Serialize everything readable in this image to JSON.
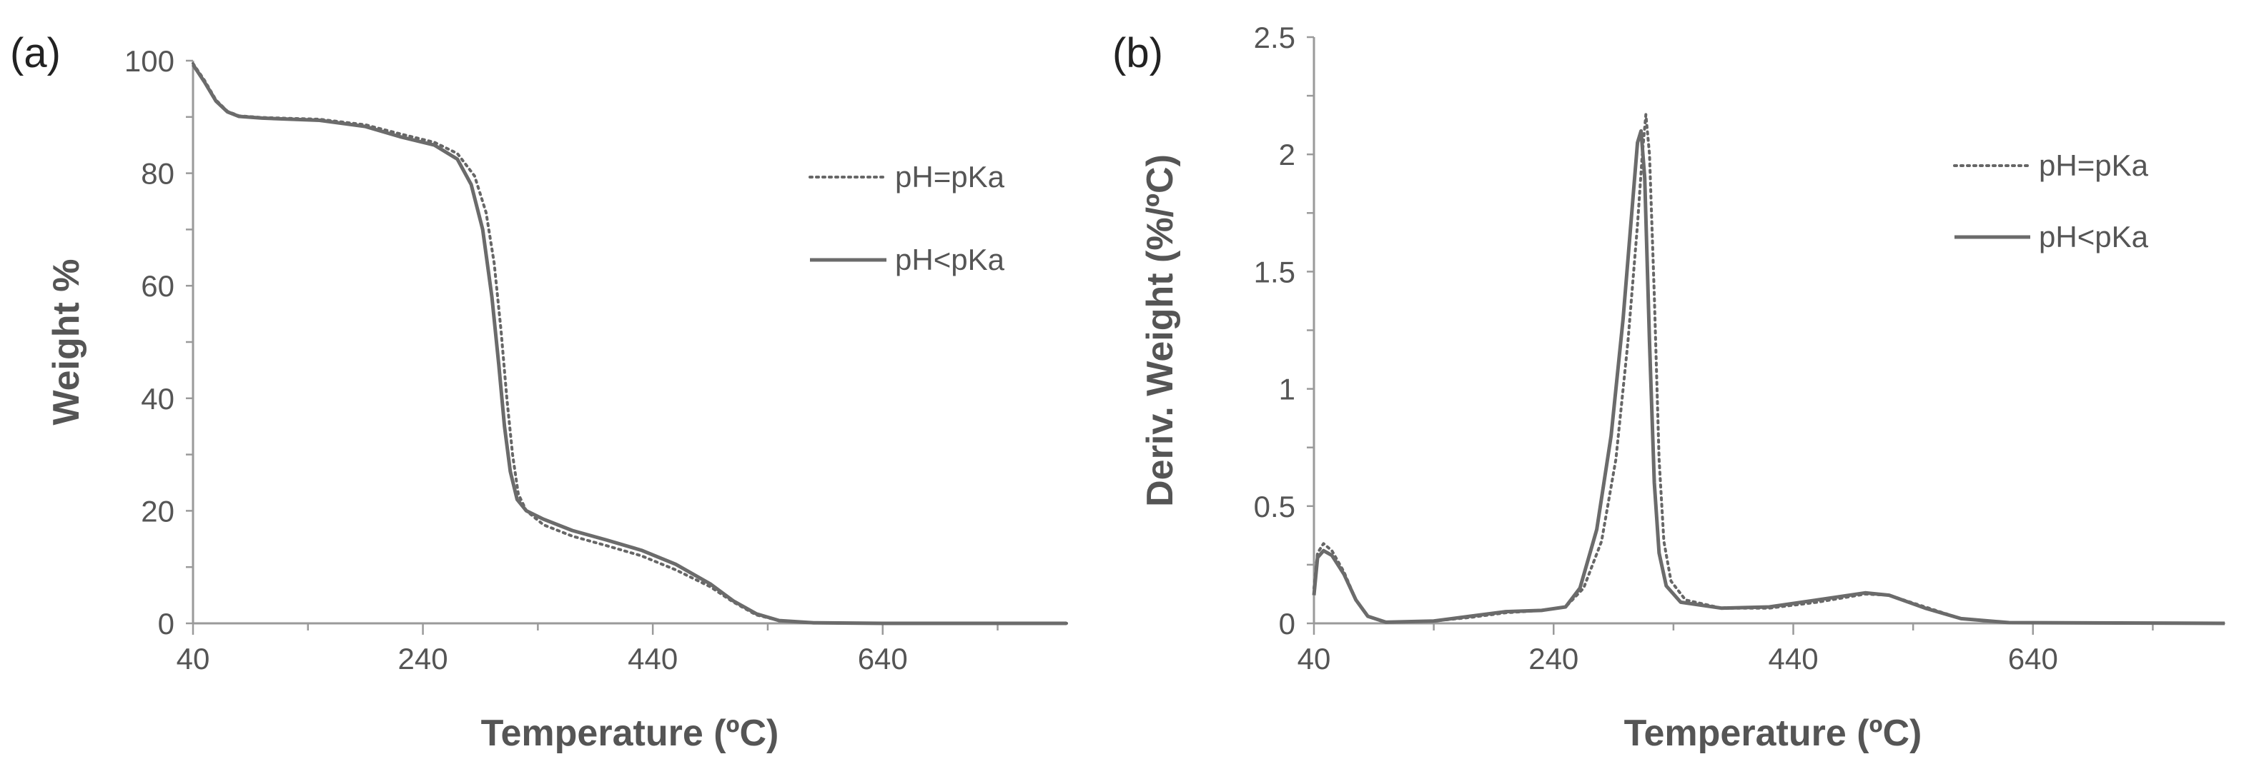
{
  "chart_data": [
    {
      "type": "line",
      "panel_label": "(a)",
      "xlabel": "Temperature (ºC)",
      "ylabel": "Weight %",
      "xlim": [
        40,
        800
      ],
      "ylim": [
        0,
        100
      ],
      "xticks": [
        40,
        240,
        440,
        640
      ],
      "yticks": [
        0,
        20,
        40,
        60,
        80,
        100
      ],
      "legend_position": "top-right",
      "series": [
        {
          "name": "pH=pKa",
          "style": "dotted",
          "color": "#666666",
          "points": [
            [
              40,
              99.5
            ],
            [
              50,
              96.5
            ],
            [
              60,
              93
            ],
            [
              70,
              91
            ],
            [
              80,
              90.2
            ],
            [
              100,
              89.9
            ],
            [
              150,
              89.6
            ],
            [
              190,
              88.6
            ],
            [
              220,
              87
            ],
            [
              250,
              85.5
            ],
            [
              270,
              83.5
            ],
            [
              285,
              79.5
            ],
            [
              295,
              73
            ],
            [
              302,
              64
            ],
            [
              308,
              52
            ],
            [
              313,
              40
            ],
            [
              318,
              30
            ],
            [
              323,
              23
            ],
            [
              330,
              20
            ],
            [
              345,
              17.5
            ],
            [
              370,
              15.5
            ],
            [
              400,
              13.8
            ],
            [
              430,
              12
            ],
            [
              460,
              9.5
            ],
            [
              490,
              6.5
            ],
            [
              510,
              3.8
            ],
            [
              530,
              1.5
            ],
            [
              550,
              0.5
            ],
            [
              580,
              0.1
            ],
            [
              640,
              0
            ],
            [
              800,
              0
            ]
          ]
        },
        {
          "name": "pH<pKa",
          "style": "solid",
          "color": "#6b6b6b",
          "points": [
            [
              40,
              99.3
            ],
            [
              50,
              96.2
            ],
            [
              60,
              92.8
            ],
            [
              70,
              90.9
            ],
            [
              80,
              90.1
            ],
            [
              100,
              89.8
            ],
            [
              150,
              89.4
            ],
            [
              190,
              88.3
            ],
            [
              220,
              86.5
            ],
            [
              250,
              85
            ],
            [
              270,
              82.5
            ],
            [
              282,
              78
            ],
            [
              292,
              70
            ],
            [
              300,
              58
            ],
            [
              306,
              46
            ],
            [
              311,
              35
            ],
            [
              316,
              27
            ],
            [
              322,
              22
            ],
            [
              330,
              20
            ],
            [
              345,
              18.5
            ],
            [
              370,
              16.5
            ],
            [
              400,
              14.8
            ],
            [
              430,
              13
            ],
            [
              460,
              10.5
            ],
            [
              490,
              7
            ],
            [
              510,
              4
            ],
            [
              530,
              1.7
            ],
            [
              550,
              0.5
            ],
            [
              580,
              0.1
            ],
            [
              640,
              0
            ],
            [
              800,
              0
            ]
          ]
        }
      ]
    },
    {
      "type": "line",
      "panel_label": "(b)",
      "xlabel": "Temperature (ºC)",
      "ylabel": "Deriv. Weight (%/ºC)",
      "xlim": [
        40,
        800
      ],
      "ylim": [
        0,
        2.5
      ],
      "xticks": [
        40,
        240,
        440,
        640
      ],
      "yticks": [
        0,
        0.5,
        1,
        1.5,
        2,
        2.5
      ],
      "ytick_labels": [
        "0",
        "0.5",
        "1",
        "1.5",
        "2",
        "2.5"
      ],
      "legend_position": "top-right",
      "series": [
        {
          "name": "pH=pKa",
          "style": "dotted",
          "color": "#666666",
          "points": [
            [
              40,
              0.15
            ],
            [
              43,
              0.3
            ],
            [
              48,
              0.34
            ],
            [
              55,
              0.31
            ],
            [
              65,
              0.22
            ],
            [
              75,
              0.1
            ],
            [
              85,
              0.03
            ],
            [
              100,
              0.005
            ],
            [
              140,
              0.01
            ],
            [
              170,
              0.025
            ],
            [
              200,
              0.045
            ],
            [
              230,
              0.055
            ],
            [
              250,
              0.07
            ],
            [
              265,
              0.15
            ],
            [
              280,
              0.35
            ],
            [
              292,
              0.7
            ],
            [
              302,
              1.2
            ],
            [
              310,
              1.7
            ],
            [
              314,
              2.0
            ],
            [
              317,
              2.17
            ],
            [
              320,
              2.0
            ],
            [
              324,
              1.4
            ],
            [
              328,
              0.7
            ],
            [
              332,
              0.35
            ],
            [
              338,
              0.18
            ],
            [
              350,
              0.1
            ],
            [
              380,
              0.065
            ],
            [
              420,
              0.065
            ],
            [
              460,
              0.09
            ],
            [
              500,
              0.125
            ],
            [
              520,
              0.12
            ],
            [
              550,
              0.07
            ],
            [
              580,
              0.02
            ],
            [
              620,
              0.003
            ],
            [
              800,
              0
            ]
          ]
        },
        {
          "name": "pH<pKa",
          "style": "solid",
          "color": "#6b6b6b",
          "points": [
            [
              40,
              0.12
            ],
            [
              43,
              0.28
            ],
            [
              48,
              0.31
            ],
            [
              55,
              0.29
            ],
            [
              65,
              0.21
            ],
            [
              75,
              0.1
            ],
            [
              85,
              0.03
            ],
            [
              100,
              0.005
            ],
            [
              140,
              0.01
            ],
            [
              170,
              0.03
            ],
            [
              200,
              0.05
            ],
            [
              230,
              0.055
            ],
            [
              250,
              0.07
            ],
            [
              262,
              0.15
            ],
            [
              276,
              0.4
            ],
            [
              288,
              0.8
            ],
            [
              298,
              1.3
            ],
            [
              306,
              1.8
            ],
            [
              310,
              2.05
            ],
            [
              313,
              2.1
            ],
            [
              316,
              1.9
            ],
            [
              320,
              1.2
            ],
            [
              324,
              0.6
            ],
            [
              328,
              0.3
            ],
            [
              334,
              0.16
            ],
            [
              346,
              0.09
            ],
            [
              380,
              0.065
            ],
            [
              420,
              0.07
            ],
            [
              460,
              0.1
            ],
            [
              500,
              0.13
            ],
            [
              520,
              0.12
            ],
            [
              550,
              0.065
            ],
            [
              580,
              0.02
            ],
            [
              620,
              0.003
            ],
            [
              800,
              0
            ]
          ]
        }
      ]
    }
  ]
}
